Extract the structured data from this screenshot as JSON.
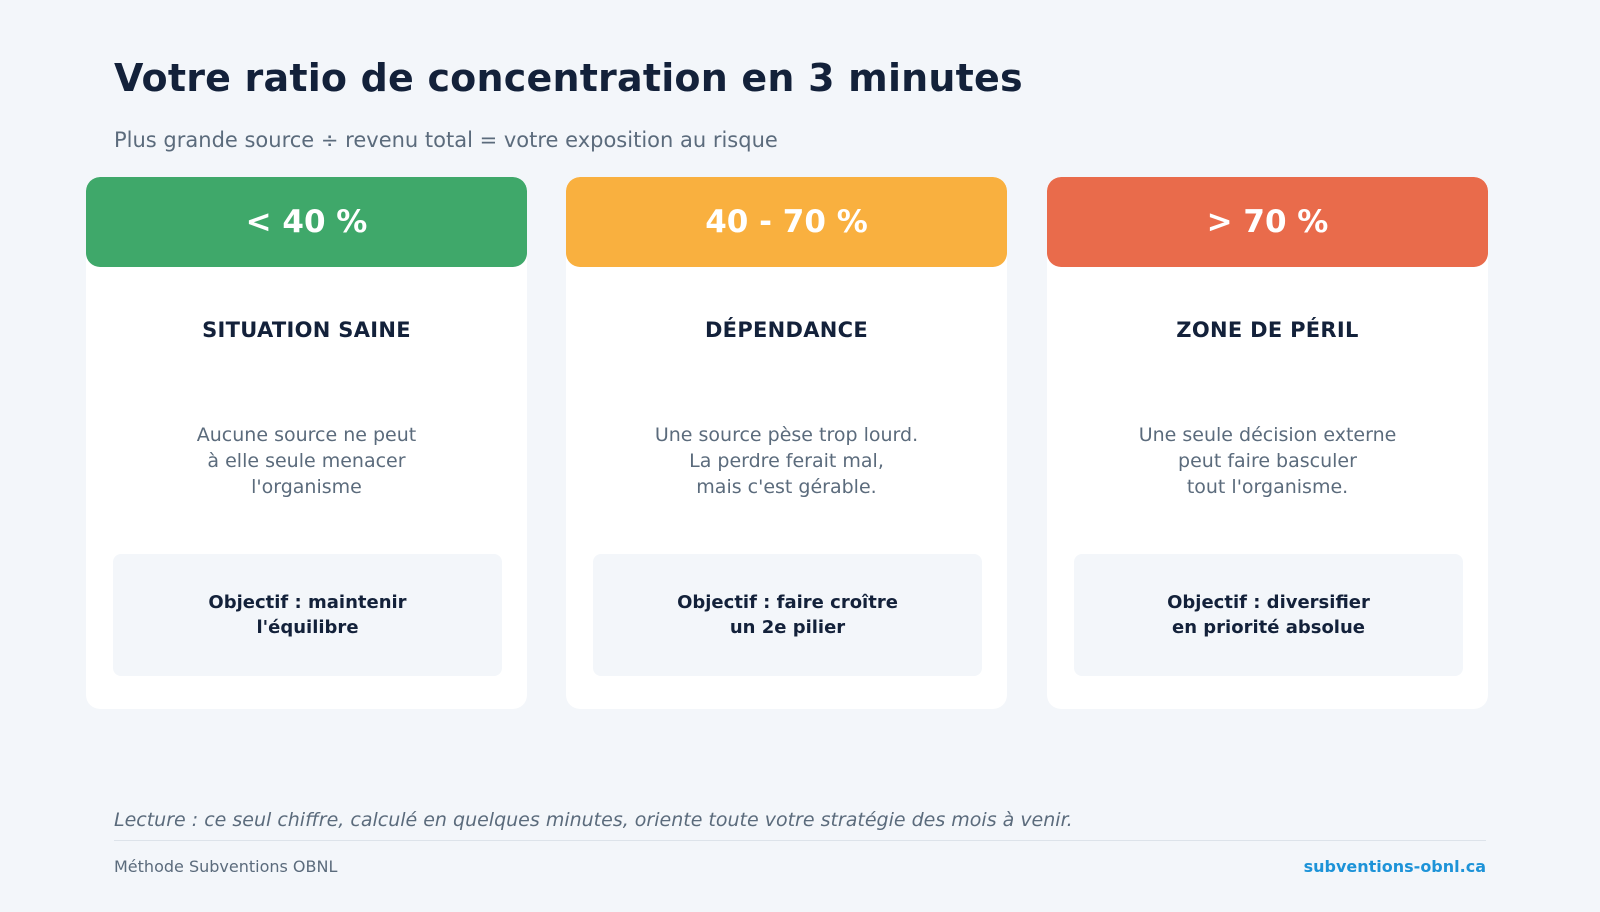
{
  "header": {
    "title": "Votre ratio de concentration en 3 minutes",
    "subtitle": "Plus grande source ÷ revenu total = votre exposition au risque"
  },
  "cards": [
    {
      "range": "< 40 %",
      "color": "#3fa86a",
      "heading": "SITUATION SAINE",
      "description": [
        "Aucune source ne peut",
        "à elle seule menacer",
        "l'organisme"
      ],
      "objective": [
        "Objectif : maintenir",
        "l'équilibre"
      ]
    },
    {
      "range": "40 - 70 %",
      "color": "#f9b03f",
      "heading": "DÉPENDANCE",
      "description": [
        "Une source pèse trop lourd.",
        "La perdre ferait mal,",
        "mais c'est gérable."
      ],
      "objective": [
        "Objectif : faire croître",
        "un 2e pilier"
      ]
    },
    {
      "range": "> 70 %",
      "color": "#e96b4b",
      "heading": "ZONE DE PÉRIL",
      "description": [
        "Une seule décision externe",
        "peut faire basculer",
        "tout l'organisme."
      ],
      "objective": [
        "Objectif : diversifier",
        "en priorité absolue"
      ]
    }
  ],
  "reading": "Lecture : ce seul chiffre, calculé en quelques minutes, oriente toute votre stratégie des mois à venir.",
  "footer": {
    "left": "Méthode Subventions OBNL",
    "right": "subventions-obnl.ca"
  }
}
